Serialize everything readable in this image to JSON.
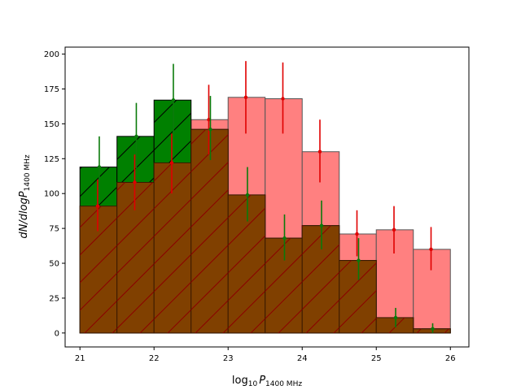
{
  "chart_data": {
    "type": "bar",
    "xlabel_parts": {
      "base": "log",
      "base_sub": "10",
      "var": "P",
      "var_sub": "1400 MHz"
    },
    "ylabel_parts": {
      "pre": "dN/dlog",
      "var": "P",
      "var_sub": "1400 MHz"
    },
    "xlim": [
      20.8,
      26.25
    ],
    "ylim": [
      -10,
      205
    ],
    "xticks": [
      21,
      22,
      23,
      24,
      25,
      26
    ],
    "yticks": [
      0,
      25,
      50,
      75,
      100,
      125,
      150,
      175,
      200
    ],
    "bin_edges": [
      21.0,
      21.5,
      22.0,
      22.5,
      23.0,
      23.5,
      24.0,
      24.5,
      25.0,
      25.5,
      26.0
    ],
    "series": [
      {
        "color": "#ff8080",
        "errorbar_color": "#e00000",
        "hatch": false,
        "values": [
          91,
          108,
          122,
          153,
          169,
          168,
          130,
          71,
          74,
          60
        ],
        "errors": [
          [
            73,
            110
          ],
          [
            88,
            128
          ],
          [
            100,
            143
          ],
          [
            128,
            178
          ],
          [
            143,
            195
          ],
          [
            143,
            194
          ],
          [
            108,
            153
          ],
          [
            55,
            88
          ],
          [
            57,
            91
          ],
          [
            45,
            76
          ]
        ]
      },
      {
        "color": "#008000",
        "errorbar_color": "#0a7a0a",
        "hatch": true,
        "values": [
          119,
          141,
          167,
          146,
          99,
          68,
          77,
          52,
          11,
          3
        ],
        "errors": [
          [
            98,
            141
          ],
          [
            118,
            165
          ],
          [
            143,
            193
          ],
          [
            124,
            170
          ],
          [
            80,
            119
          ],
          [
            52,
            85
          ],
          [
            60,
            95
          ],
          [
            38,
            68
          ],
          [
            4,
            18
          ],
          [
            0,
            7
          ]
        ]
      }
    ],
    "grid": false,
    "legend": "none"
  }
}
